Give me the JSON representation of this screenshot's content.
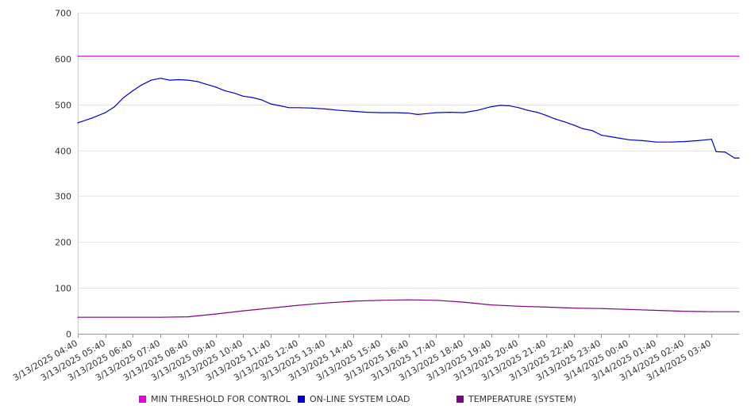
{
  "chart_data": {
    "type": "line",
    "ylim": [
      0,
      700
    ],
    "y_ticks": [
      "0",
      "100",
      "200",
      "300",
      "400",
      "500",
      "600",
      "700"
    ],
    "x_range": [
      "3/13/2025 04:40",
      "3/14/2025 04:40"
    ],
    "x_tick_labels": [
      "3/13/2025 04:40",
      "3/13/2025 05:40",
      "3/13/2025 06:40",
      "3/13/2025 07:40",
      "3/13/2025 08:40",
      "3/13/2025 09:40",
      "3/13/2025 10:40",
      "3/13/2025 11:40",
      "3/13/2025 12:40",
      "3/13/2025 13:40",
      "3/13/2025 14:40",
      "3/13/2025 15:40",
      "3/13/2025 16:40",
      "3/13/2025 17:40",
      "3/13/2025 18:40",
      "3/13/2025 19:40",
      "3/13/2025 20:40",
      "3/13/2025 21:40",
      "3/13/2025 22:40",
      "3/13/2025 23:40",
      "3/14/2025 00:40",
      "3/14/2025 01:40",
      "3/14/2025 02:40",
      "3/14/2025 03:40"
    ],
    "grid": "horizontal",
    "legend_position": "bottom",
    "series": [
      {
        "name": "MIN THRESHOLD FOR CONTROL",
        "color": "#e000e0",
        "points": [
          [
            "3/13/2025 04:40",
            605
          ],
          [
            "3/14/2025 04:40",
            605
          ]
        ]
      },
      {
        "name": "ON-LINE SYSTEM LOAD",
        "color": "#0000cc",
        "points": [
          [
            "3/13/2025 04:40",
            460
          ],
          [
            "3/13/2025 05:10",
            470
          ],
          [
            "3/13/2025 05:40",
            482
          ],
          [
            "3/13/2025 06:00",
            495
          ],
          [
            "3/13/2025 06:20",
            515
          ],
          [
            "3/13/2025 06:40",
            530
          ],
          [
            "3/13/2025 07:00",
            543
          ],
          [
            "3/13/2025 07:20",
            553
          ],
          [
            "3/13/2025 07:40",
            557
          ],
          [
            "3/13/2025 08:00",
            553
          ],
          [
            "3/13/2025 08:20",
            554
          ],
          [
            "3/13/2025 08:40",
            553
          ],
          [
            "3/13/2025 09:00",
            550
          ],
          [
            "3/13/2025 09:20",
            544
          ],
          [
            "3/13/2025 09:40",
            538
          ],
          [
            "3/13/2025 10:00",
            530
          ],
          [
            "3/13/2025 10:20",
            525
          ],
          [
            "3/13/2025 10:40",
            518
          ],
          [
            "3/13/2025 11:00",
            515
          ],
          [
            "3/13/2025 11:20",
            510
          ],
          [
            "3/13/2025 11:40",
            501
          ],
          [
            "3/13/2025 12:00",
            497
          ],
          [
            "3/13/2025 12:20",
            493
          ],
          [
            "3/13/2025 12:40",
            493
          ],
          [
            "3/13/2025 13:10",
            492
          ],
          [
            "3/13/2025 13:40",
            490
          ],
          [
            "3/13/2025 14:10",
            487
          ],
          [
            "3/13/2025 14:40",
            485
          ],
          [
            "3/13/2025 15:10",
            483
          ],
          [
            "3/13/2025 15:40",
            482
          ],
          [
            "3/13/2025 16:10",
            482
          ],
          [
            "3/13/2025 16:40",
            481
          ],
          [
            "3/13/2025 17:00",
            478
          ],
          [
            "3/13/2025 17:20",
            480
          ],
          [
            "3/13/2025 17:40",
            482
          ],
          [
            "3/13/2025 18:10",
            483
          ],
          [
            "3/13/2025 18:40",
            482
          ],
          [
            "3/13/2025 19:10",
            487
          ],
          [
            "3/13/2025 19:40",
            495
          ],
          [
            "3/13/2025 20:00",
            498
          ],
          [
            "3/13/2025 20:20",
            497
          ],
          [
            "3/13/2025 20:40",
            493
          ],
          [
            "3/13/2025 21:00",
            487
          ],
          [
            "3/13/2025 21:20",
            483
          ],
          [
            "3/13/2025 21:40",
            476
          ],
          [
            "3/13/2025 22:00",
            468
          ],
          [
            "3/13/2025 22:20",
            462
          ],
          [
            "3/13/2025 22:40",
            455
          ],
          [
            "3/13/2025 23:00",
            447
          ],
          [
            "3/13/2025 23:20",
            443
          ],
          [
            "3/13/2025 23:40",
            433
          ],
          [
            "3/14/2025 00:10",
            428
          ],
          [
            "3/14/2025 00:40",
            423
          ],
          [
            "3/14/2025 01:10",
            421
          ],
          [
            "3/14/2025 01:40",
            418
          ],
          [
            "3/14/2025 02:10",
            418
          ],
          [
            "3/14/2025 02:40",
            419
          ],
          [
            "3/14/2025 03:10",
            421
          ],
          [
            "3/14/2025 03:40",
            424
          ],
          [
            "3/14/2025 03:50",
            397
          ],
          [
            "3/14/2025 04:10",
            396
          ],
          [
            "3/14/2025 04:30",
            383
          ],
          [
            "3/14/2025 04:40",
            383
          ]
        ]
      },
      {
        "name": "TEMPERATURE (SYSTEM)",
        "color": "#7a0a7a",
        "points": [
          [
            "3/13/2025 04:40",
            36
          ],
          [
            "3/13/2025 07:40",
            36
          ],
          [
            "3/13/2025 08:40",
            37
          ],
          [
            "3/13/2025 09:40",
            43
          ],
          [
            "3/13/2025 10:40",
            50
          ],
          [
            "3/13/2025 11:40",
            56
          ],
          [
            "3/13/2025 12:40",
            62
          ],
          [
            "3/13/2025 13:40",
            67
          ],
          [
            "3/13/2025 14:40",
            71
          ],
          [
            "3/13/2025 15:40",
            73
          ],
          [
            "3/13/2025 16:40",
            74
          ],
          [
            "3/13/2025 17:40",
            73
          ],
          [
            "3/13/2025 18:40",
            69
          ],
          [
            "3/13/2025 19:40",
            63
          ],
          [
            "3/13/2025 20:40",
            60
          ],
          [
            "3/13/2025 21:40",
            58
          ],
          [
            "3/13/2025 22:40",
            56
          ],
          [
            "3/13/2025 23:40",
            55
          ],
          [
            "3/14/2025 00:40",
            53
          ],
          [
            "3/14/2025 01:40",
            51
          ],
          [
            "3/14/2025 02:40",
            49
          ],
          [
            "3/14/2025 03:40",
            48
          ],
          [
            "3/14/2025 04:40",
            48
          ]
        ]
      }
    ]
  }
}
